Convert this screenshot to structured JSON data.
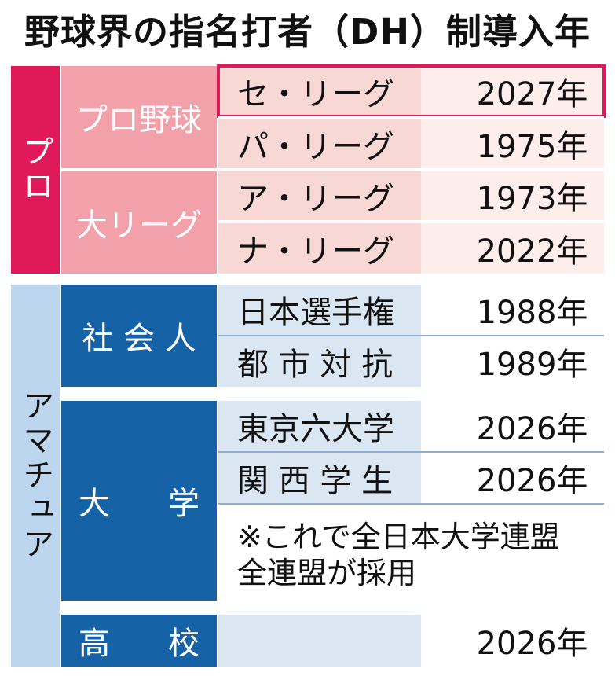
{
  "title": "野球界の指名打者（DH）制導入年",
  "pro": {
    "label": "プロ",
    "groups": [
      {
        "label": "プロ野球",
        "rows": [
          {
            "name": "セ・リーグ",
            "year": "2027年"
          },
          {
            "name": "パ・リーグ",
            "year": "1975年"
          }
        ]
      },
      {
        "label": "大リーグ",
        "rows": [
          {
            "name": "ア・リーグ",
            "year": "1973年"
          },
          {
            "name": "ナ・リーグ",
            "year": "2022年"
          }
        ]
      }
    ]
  },
  "amateur": {
    "label": "アマチュア",
    "groups": [
      {
        "label": "社 会 人",
        "rows": [
          {
            "name": "日本選手権",
            "year": "1988年"
          },
          {
            "name": "都 市 対 抗",
            "year": "1989年"
          }
        ]
      },
      {
        "label_left": "大",
        "label_right": "学",
        "rows": [
          {
            "name": "東京六大学",
            "year": "2026年"
          },
          {
            "name": "関 西 学 生",
            "year": "2026年"
          }
        ],
        "note": [
          "※これで全日本大学連盟",
          "全連盟が採用"
        ]
      },
      {
        "label_left": "高",
        "label_right": "校",
        "rows": [
          {
            "name": "",
            "year": "2026年"
          }
        ]
      }
    ]
  },
  "colors": {
    "pro_accent": "#e0195a",
    "amateur_accent": "#1662a6"
  }
}
